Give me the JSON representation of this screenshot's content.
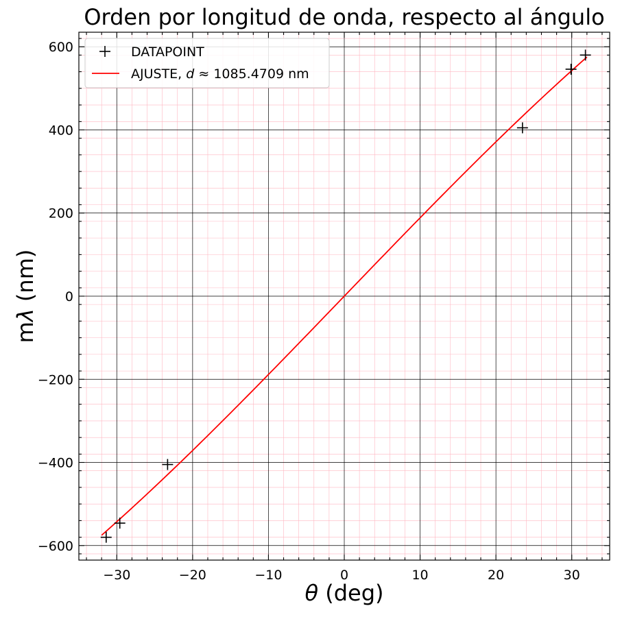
{
  "chart_data": {
    "type": "scatter",
    "title": "Orden por longitud de onda, respecto al ángulo",
    "xlabel": {
      "symbol": "θ",
      "unit": " (deg)"
    },
    "ylabel": {
      "prefix": "m",
      "symbol": "λ",
      "unit": " (nm)"
    },
    "xlim": [
      -35,
      35
    ],
    "ylim": [
      -635,
      635
    ],
    "xticks": [
      -30,
      -20,
      -10,
      0,
      10,
      20,
      30
    ],
    "xtick_labels": [
      "−30",
      "−20",
      "−10",
      "0",
      "10",
      "20",
      "30"
    ],
    "yticks": [
      -600,
      -400,
      -200,
      0,
      200,
      400,
      600
    ],
    "ytick_labels": [
      "−600",
      "−400",
      "−200",
      "0",
      "200",
      "400",
      "600"
    ],
    "grid": {
      "major": true,
      "minor": true,
      "major_color": "#000000",
      "minor_color": "#ffb6c1"
    },
    "legend_position": "top-left",
    "series": [
      {
        "name": "DATAPOINT",
        "kind": "scatter",
        "marker": "plus",
        "color": "#000000",
        "x": [
          -31.4,
          -29.6,
          -23.3,
          23.5,
          29.9,
          31.8
        ],
        "y": [
          -580,
          -546,
          -405,
          405,
          546,
          580
        ]
      },
      {
        "name": "AJUSTE, d ≈ 1085.4709 nm",
        "legend_prefix": "AJUSTE, ",
        "legend_var": "d",
        "legend_suffix": " ≈ 1085.4709 nm",
        "kind": "line",
        "color": "#ff0000",
        "model": "d·sin(θ)",
        "d_nm": 1085.4709,
        "x_range": [
          -32,
          32
        ]
      }
    ]
  }
}
